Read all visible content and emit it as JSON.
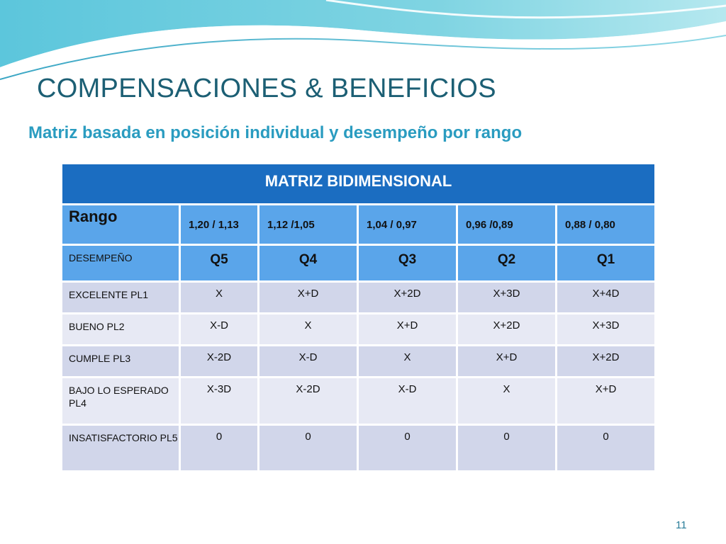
{
  "slide": {
    "title": "COMPENSACIONES & BENEFICIOS",
    "subtitle": "Matriz basada en posición individual y desempeño por rango",
    "page_number": "11"
  },
  "matrix": {
    "header": "MATRIZ BIDIMENSIONAL",
    "rango_label": "Rango",
    "ranges": [
      "1,20 / 1,13",
      "1,12 /1,05",
      "1,04 / 0,97",
      "0,96 /0,89",
      "0,88 / 0,80"
    ],
    "desempeno_label": "DESEMPEÑO",
    "quartiles": [
      "Q5",
      "Q4",
      "Q3",
      "Q2",
      "Q1"
    ],
    "rows": [
      {
        "label": "EXCELENTE PL1",
        "cells": [
          "X",
          "X+D",
          "X+2D",
          "X+3D",
          "X+4D"
        ]
      },
      {
        "label": "BUENO PL2",
        "cells": [
          "X-D",
          "X",
          "X+D",
          "X+2D",
          "X+3D"
        ]
      },
      {
        "label": "CUMPLE PL3",
        "cells": [
          "X-2D",
          "X-D",
          "X",
          "X+D",
          "X+2D"
        ]
      },
      {
        "label": "BAJO LO ESPERADO PL4",
        "cells": [
          "X-3D",
          "X-2D",
          "X-D",
          "X",
          "X+D"
        ]
      },
      {
        "label": "INSATISFACTORIO PL5",
        "cells": [
          "0",
          "0",
          "0",
          "0",
          "0"
        ]
      }
    ]
  },
  "colors": {
    "title": "#1c5f74",
    "subtitle": "#2a9cc0",
    "header_bg": "#1b6dc1",
    "range_row_bg": "#5aa5ea",
    "row_alt_1": "#d1d6ea",
    "row_alt_2": "#e7e9f4"
  }
}
